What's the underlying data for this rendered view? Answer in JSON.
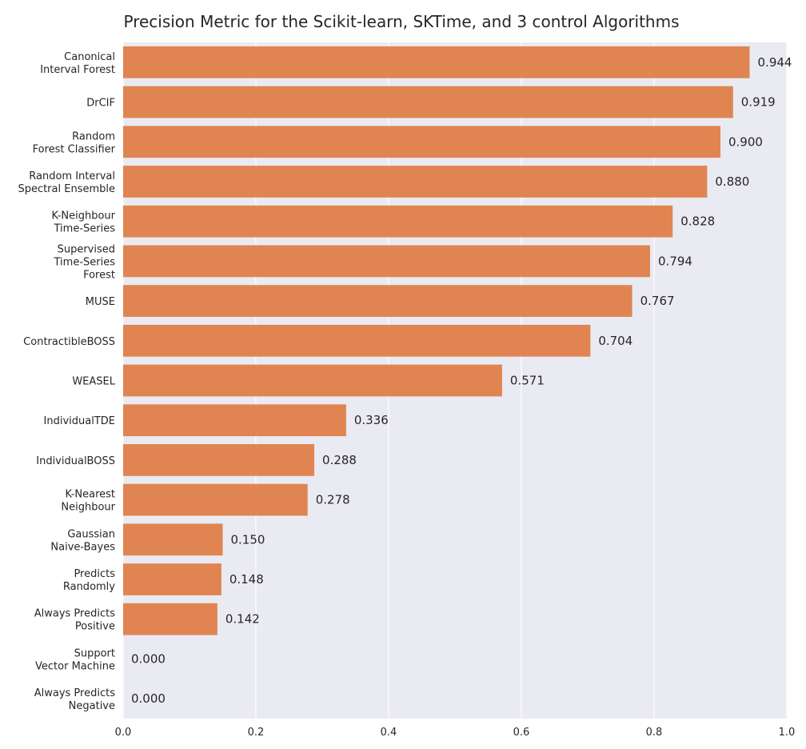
{
  "chart_data": {
    "type": "bar",
    "orientation": "horizontal",
    "title": "Precision Metric for the Scikit-learn, SKTime, and 3 control Algorithms",
    "xlabel": "",
    "ylabel": "",
    "xlim": [
      0,
      1.0
    ],
    "grid": true,
    "categories": [
      [
        "Canonical",
        "Interval Forest"
      ],
      [
        "DrCIF"
      ],
      [
        "Random",
        "Forest Classifier"
      ],
      [
        "Random Interval",
        "Spectral Ensemble"
      ],
      [
        "K-Neighbour",
        "Time-Series"
      ],
      [
        "Supervised",
        "Time-Series",
        "Forest"
      ],
      [
        "MUSE"
      ],
      [
        "ContractibleBOSS"
      ],
      [
        "WEASEL"
      ],
      [
        "IndividualTDE"
      ],
      [
        "IndividualBOSS"
      ],
      [
        "K-Nearest",
        "Neighbour"
      ],
      [
        "Gaussian",
        "Naive-Bayes"
      ],
      [
        "Predicts",
        "Randomly"
      ],
      [
        "Always Predicts",
        "Positive"
      ],
      [
        "Support",
        "Vector Machine"
      ],
      [
        "Always Predicts",
        "Negative"
      ]
    ],
    "values": [
      0.944,
      0.919,
      0.9,
      0.88,
      0.828,
      0.794,
      0.767,
      0.704,
      0.571,
      0.336,
      0.288,
      0.278,
      0.15,
      0.148,
      0.142,
      0.0,
      0.0
    ],
    "value_labels": [
      "0.944",
      "0.919",
      "0.900",
      "0.880",
      "0.828",
      "0.794",
      "0.767",
      "0.704",
      "0.571",
      "0.336",
      "0.288",
      "0.278",
      "0.150",
      "0.148",
      "0.142",
      "0.000",
      "0.000"
    ],
    "x_ticks": [
      0.0,
      0.2,
      0.4,
      0.6,
      0.8,
      1.0
    ],
    "x_tick_labels": [
      "0.0",
      "0.2",
      "0.4",
      "0.6",
      "0.8",
      "1.0"
    ],
    "colors": {
      "bar": "#e08552",
      "plot_background": "#eaeaf2",
      "grid": "#ffffff",
      "text": "#262626"
    }
  }
}
